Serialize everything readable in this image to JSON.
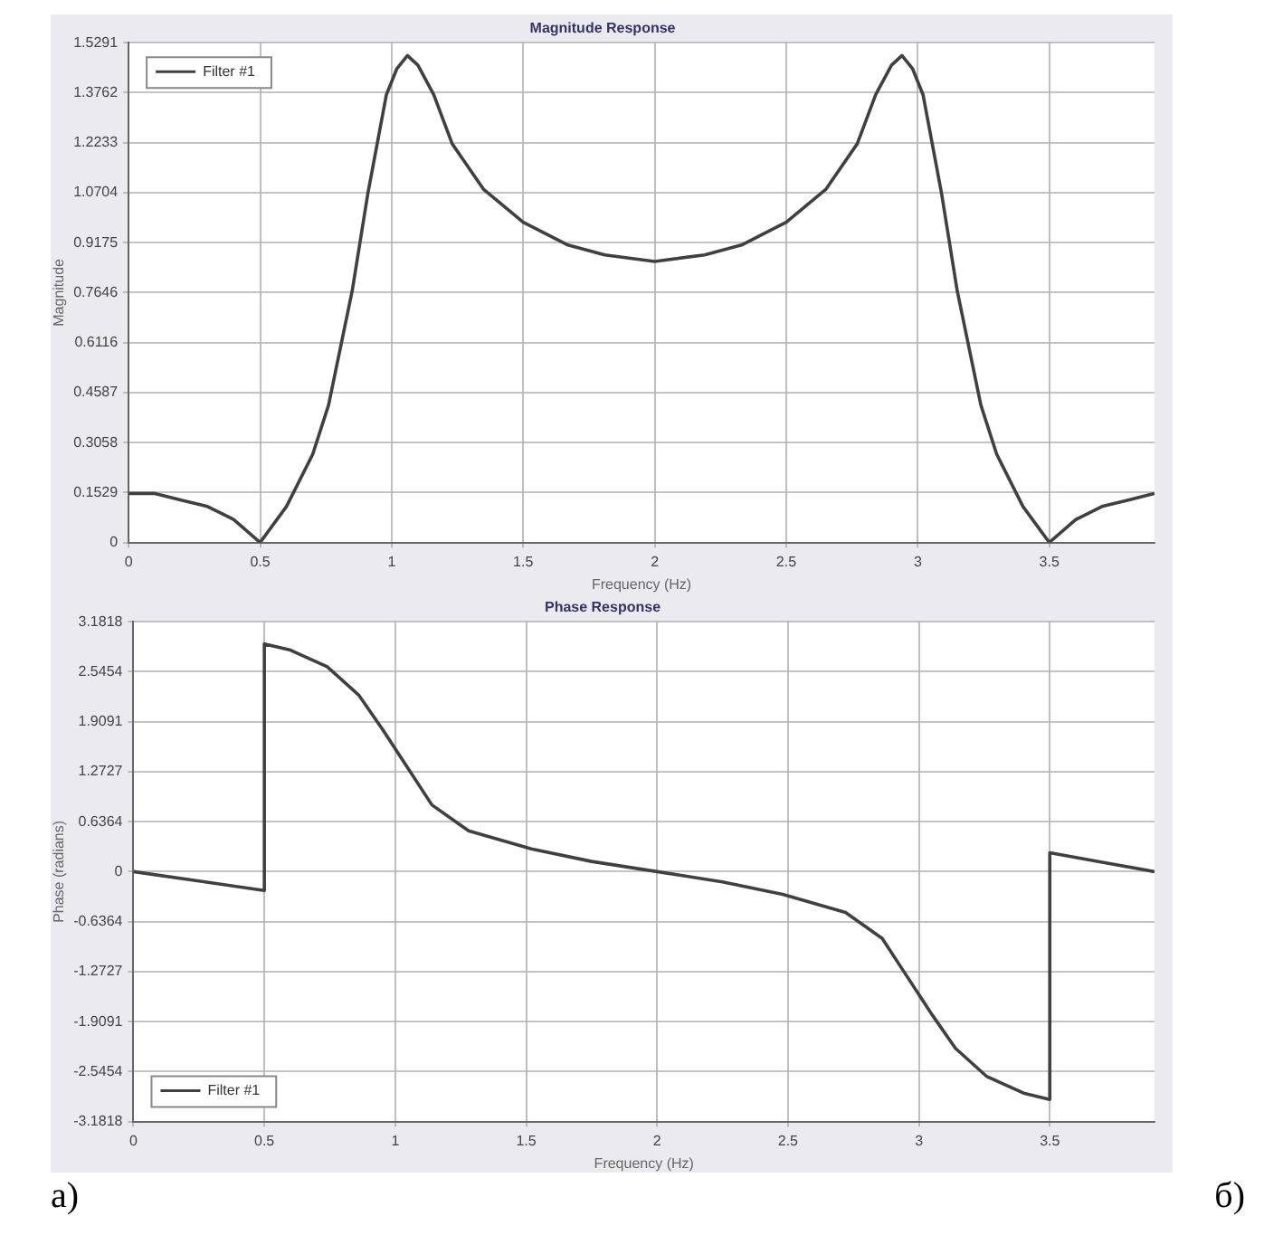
{
  "chart_data": [
    {
      "type": "line",
      "title": "Magnitude Response",
      "xlabel": "Frequency (Hz)",
      "ylabel": "Magnitude",
      "legend": "top left",
      "grid": true,
      "xlim": [
        0,
        3.9
      ],
      "xticks": [
        0,
        0.5,
        1,
        1.5,
        2,
        2.5,
        3,
        3.5
      ],
      "ylim": [
        0,
        1.5291
      ],
      "yticks": [
        0,
        0.1529,
        0.3058,
        0.4587,
        0.6116,
        0.7646,
        0.9175,
        1.0704,
        1.2233,
        1.3762,
        1.5291
      ],
      "x": [
        0,
        0.1,
        0.2,
        0.3,
        0.4,
        0.5,
        0.6,
        0.7,
        0.76,
        0.85,
        0.91,
        0.98,
        1.02,
        1.06,
        1.1,
        1.16,
        1.23,
        1.35,
        1.5,
        1.67,
        1.81,
        2,
        2.19,
        2.33,
        2.5,
        2.65,
        2.77,
        2.84,
        2.9,
        2.94,
        2.98,
        3.02,
        3.09,
        3.15,
        3.24,
        3.3,
        3.4,
        3.5,
        3.6,
        3.7,
        3.8,
        3.9
      ],
      "series": [
        {
          "name": "Filter #1",
          "color": "#404040",
          "values": [
            0.15,
            0.15,
            0.13,
            0.11,
            0.07,
            0,
            0.11,
            0.27,
            0.42,
            0.77,
            1.07,
            1.37,
            1.45,
            1.49,
            1.46,
            1.37,
            1.22,
            1.08,
            0.98,
            0.91,
            0.88,
            0.86,
            0.88,
            0.91,
            0.98,
            1.08,
            1.22,
            1.37,
            1.46,
            1.49,
            1.45,
            1.37,
            1.07,
            0.77,
            0.42,
            0.27,
            0.11,
            0,
            0.07,
            0.11,
            0.13,
            0.15
          ]
        }
      ]
    },
    {
      "type": "line",
      "title": "Phase Response",
      "xlabel": "Frequency (Hz)",
      "ylabel": "Phase (radians)",
      "legend": "bottom left",
      "grid": true,
      "xlim": [
        0,
        3.9
      ],
      "xticks": [
        0,
        0.5,
        1,
        1.5,
        2,
        2.5,
        3,
        3.5
      ],
      "ylim": [
        -3.1818,
        3.1818
      ],
      "yticks": [
        -3.1818,
        -2.5454,
        -1.9091,
        -1.2727,
        -0.6364,
        0,
        0.6364,
        1.2727,
        1.9091,
        2.5454,
        3.1818
      ],
      "x": [
        0,
        0.25,
        0.5,
        0.5,
        0.6,
        0.74,
        0.86,
        0.95,
        1.05,
        1.14,
        1.28,
        1.52,
        1.75,
        2,
        2.25,
        2.48,
        2.72,
        2.86,
        2.95,
        3.05,
        3.14,
        3.26,
        3.4,
        3.5,
        3.5,
        3.7,
        3.9
      ],
      "series": [
        {
          "name": "Filter #1",
          "color": "#404040",
          "values": [
            0,
            -0.12,
            -0.24,
            2.9,
            2.82,
            2.61,
            2.25,
            1.82,
            1.31,
            0.85,
            0.52,
            0.29,
            0.13,
            0,
            -0.13,
            -0.29,
            -0.52,
            -0.85,
            -1.31,
            -1.82,
            -2.25,
            -2.61,
            -2.82,
            -2.9,
            0.24,
            0.12,
            0
          ]
        }
      ],
      "annotations": [
        "а)",
        "б)"
      ]
    }
  ]
}
